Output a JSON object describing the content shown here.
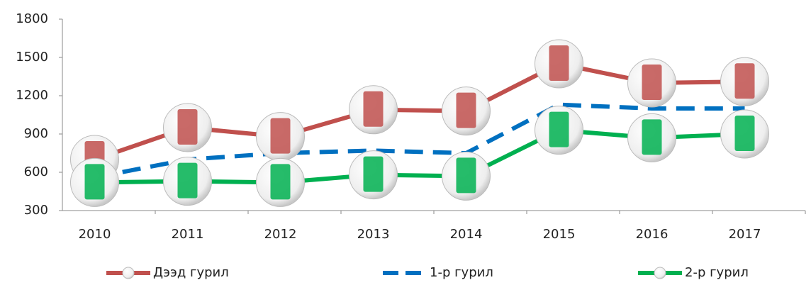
{
  "chart_data": {
    "type": "line",
    "categories": [
      "2010",
      "2011",
      "2012",
      "2013",
      "2014",
      "2015",
      "2016",
      "2017"
    ],
    "series": [
      {
        "name": "Дээд гурил",
        "color": "#c0504d",
        "values": [
          700,
          950,
          880,
          1090,
          1080,
          1450,
          1300,
          1310
        ]
      },
      {
        "name": "1-р гурил",
        "color": "#0070c0",
        "dashed": true,
        "values": [
          560,
          700,
          750,
          770,
          750,
          1130,
          1100,
          1100
        ]
      },
      {
        "name": "2-р гурил",
        "color": "#00b050",
        "values": [
          520,
          530,
          520,
          580,
          570,
          930,
          870,
          900
        ]
      }
    ],
    "ylim": [
      300,
      1800
    ],
    "yticks": [
      300,
      600,
      900,
      1200,
      1500,
      1800
    ],
    "grid": false
  }
}
